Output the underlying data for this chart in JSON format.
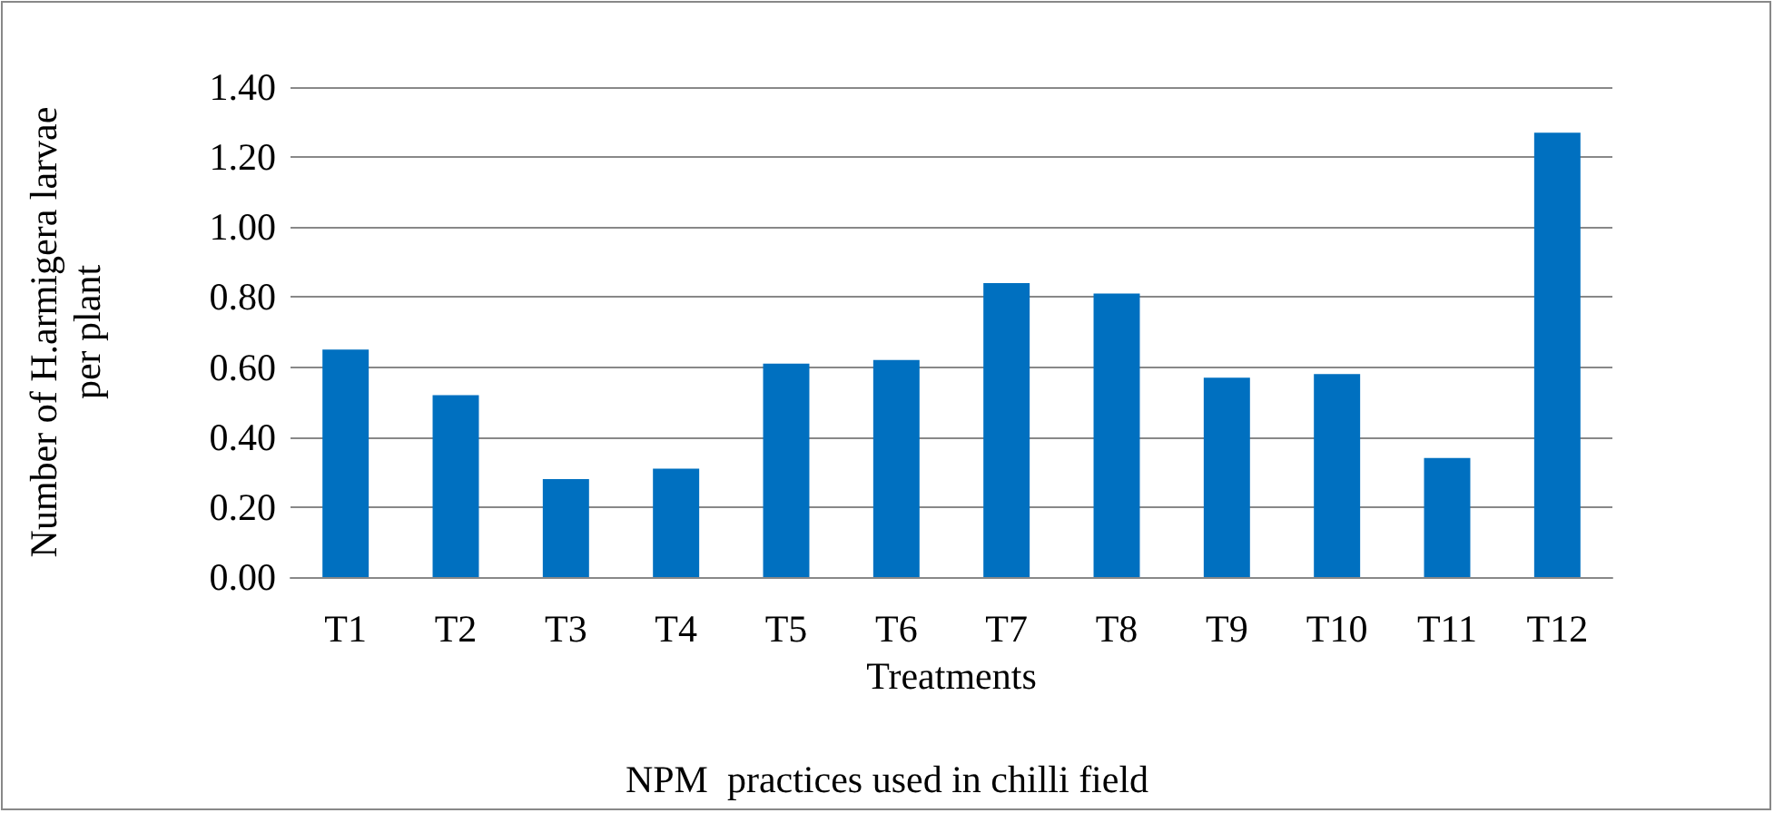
{
  "chart_data": {
    "type": "bar",
    "xlabel": "Treatments",
    "ylabel": "Number of H.armigera larvae\nper plant",
    "annotations": [
      "NPM  practices used in chilli field"
    ],
    "categories": [
      "T1",
      "T2",
      "T3",
      "T4",
      "T5",
      "T6",
      "T7",
      "T8",
      "T9",
      "T10",
      "T11",
      "T12"
    ],
    "values": [
      0.65,
      0.52,
      0.28,
      0.31,
      0.61,
      0.62,
      0.84,
      0.81,
      0.57,
      0.58,
      0.34,
      1.27
    ],
    "color": "#0070c0",
    "ylim": [
      0,
      1.4
    ],
    "yticks": [
      {
        "value": 0,
        "label": "0.00"
      },
      {
        "value": 0.2,
        "label": "0.20"
      },
      {
        "value": 0.4,
        "label": "0.40"
      },
      {
        "value": 0.6,
        "label": "0.60"
      },
      {
        "value": 0.8,
        "label": "0.80"
      },
      {
        "value": 1,
        "label": "1.00"
      },
      {
        "value": 1.2,
        "label": "1.20"
      },
      {
        "value": 1.4,
        "label": "1.40"
      }
    ],
    "grid": "y"
  }
}
